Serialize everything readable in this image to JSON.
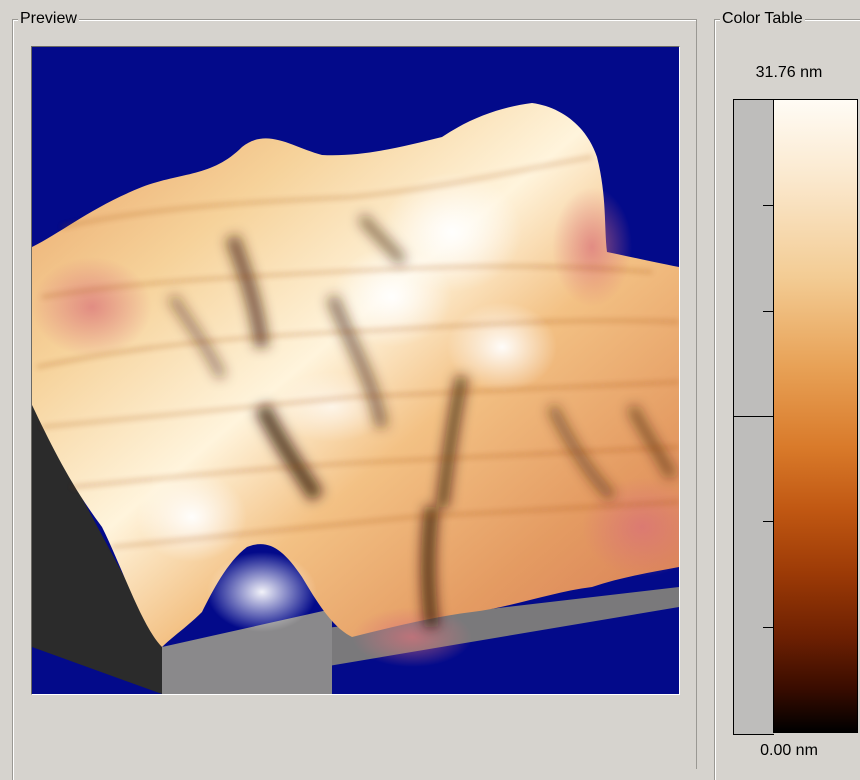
{
  "preview": {
    "legend": "Preview"
  },
  "color_table": {
    "legend": "Color Table",
    "max_label": "31.76 nm",
    "min_label": "0.00 nm",
    "gradient_colors": [
      "#fffcf5",
      "#fbe9cf",
      "#f3cc94",
      "#e8a257",
      "#d97a2a",
      "#c05712",
      "#9c3a06",
      "#6d2002",
      "#3a0c00",
      "#000000"
    ]
  },
  "colors": {
    "window_bg": "#d6d3ce",
    "viewport_bg": "#030a8a",
    "base_side_dark": "#2b2b2b",
    "base_side_gray": "#7a797b"
  }
}
